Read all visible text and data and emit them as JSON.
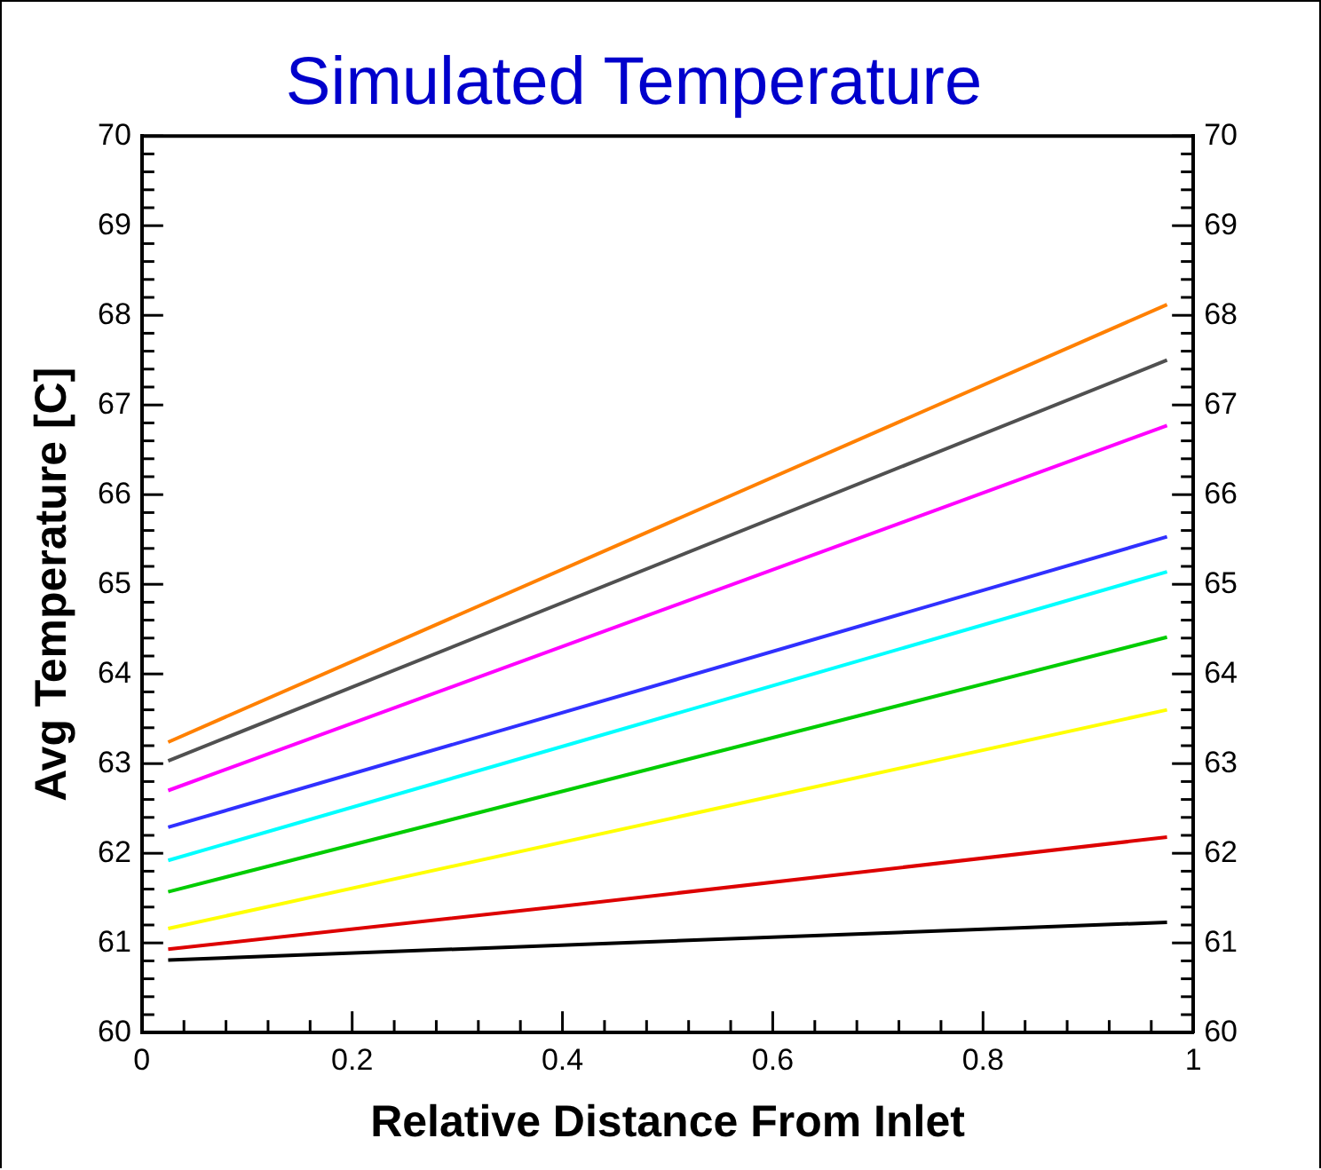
{
  "chart_data": {
    "type": "line",
    "title": "Simulated Temperature",
    "xlabel": "Relative Distance From Inlet",
    "ylabel": "Avg Temperature [C]",
    "xlim": [
      0,
      1
    ],
    "xticks": [
      0,
      0.2,
      0.4,
      0.6,
      0.8,
      1
    ],
    "ylim": [
      60,
      70
    ],
    "yticks": [
      60,
      61,
      62,
      63,
      64,
      65,
      66,
      67,
      68,
      69,
      70
    ],
    "y2lim": [
      60,
      70
    ],
    "y2ticks": [
      60,
      61,
      62,
      63,
      64,
      65,
      66,
      67,
      68,
      69,
      70
    ],
    "grid": false,
    "legend": false,
    "marker": "none",
    "line_style": "solid",
    "series": [
      {
        "color": "#ff8000",
        "x": [
          0.025,
          0.975
        ],
        "values": [
          63.24,
          68.12
        ]
      },
      {
        "color": "#505050",
        "x": [
          0.025,
          0.975
        ],
        "values": [
          63.03,
          67.5
        ]
      },
      {
        "color": "#ff00ff",
        "x": [
          0.025,
          0.975
        ],
        "values": [
          62.7,
          66.77
        ]
      },
      {
        "color": "#3030ff",
        "x": [
          0.025,
          0.975
        ],
        "values": [
          62.29,
          65.53
        ]
      },
      {
        "color": "#00ffff",
        "x": [
          0.025,
          0.975
        ],
        "values": [
          61.92,
          65.14
        ]
      },
      {
        "color": "#00cc00",
        "x": [
          0.025,
          0.975
        ],
        "values": [
          61.57,
          64.41
        ]
      },
      {
        "color": "#ffff00",
        "x": [
          0.025,
          0.975
        ],
        "values": [
          61.16,
          63.6
        ]
      },
      {
        "color": "#dd0000",
        "x": [
          0.025,
          0.4,
          0.975
        ],
        "values": [
          60.93,
          61.41,
          62.18
        ]
      },
      {
        "color": "#000000",
        "x": [
          0.025,
          0.975
        ],
        "values": [
          60.81,
          61.23
        ]
      }
    ]
  }
}
